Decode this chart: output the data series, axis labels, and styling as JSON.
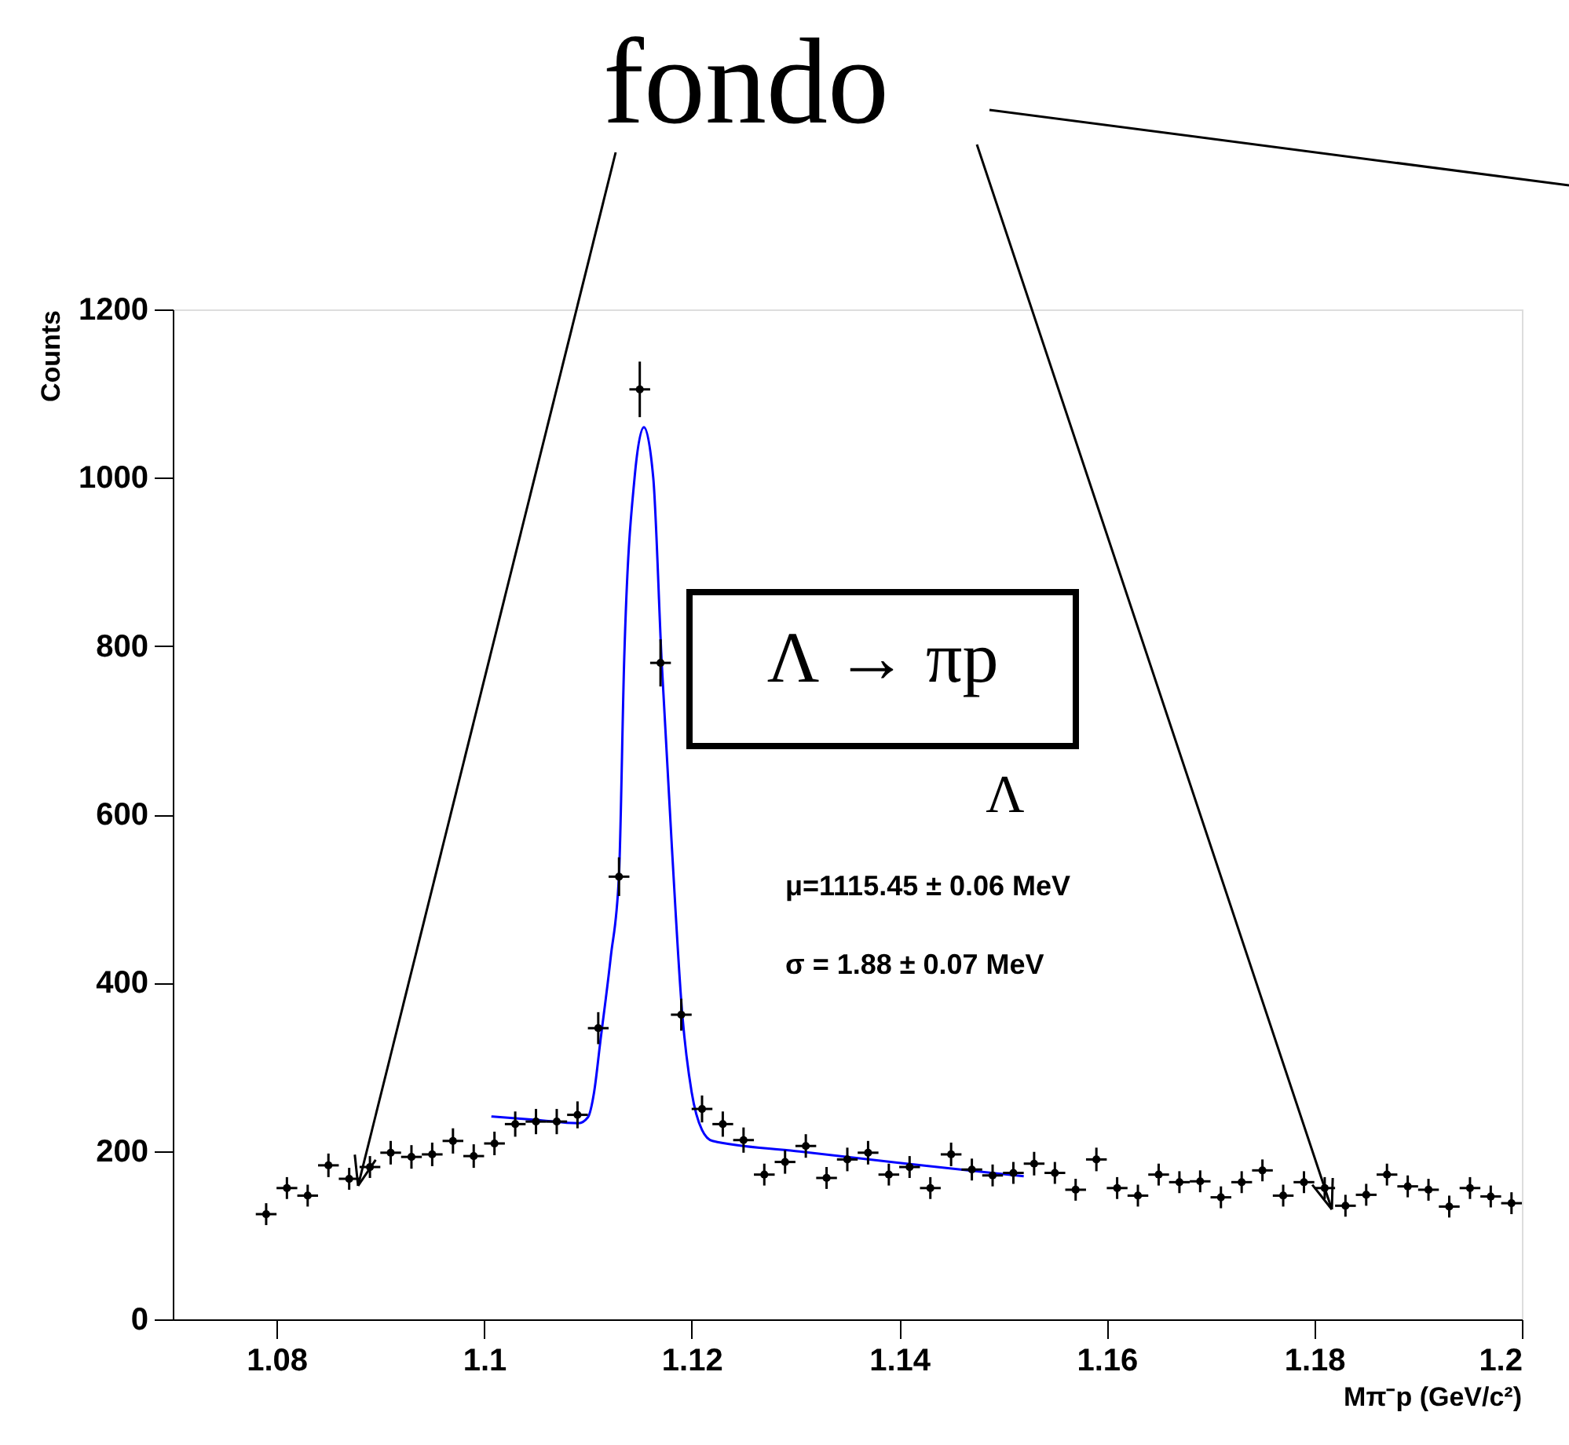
{
  "chart_data": {
    "type": "scatter",
    "xlabel": "Mπ⁻p (GeV/c²)",
    "ylabel": "Counts",
    "xlim": [
      1.07,
      1.2
    ],
    "xticks": [
      1.08,
      1.1,
      1.12,
      1.14,
      1.16,
      1.18,
      1.2
    ],
    "ylim": [
      0,
      1200
    ],
    "yticks": [
      0,
      200,
      400,
      600,
      800,
      1000,
      1200
    ],
    "grid": false,
    "annotations": [
      "fondo",
      "Λ → πp",
      "Λ",
      "μ=1115.45 ± 0.06 MeV",
      "σ = 1.88 ± 0.07 MeV"
    ],
    "series": [
      {
        "color": "#000000",
        "marker": "circle",
        "x": [
          1.079,
          1.081,
          1.083,
          1.085,
          1.087,
          1.089,
          1.091,
          1.093,
          1.095,
          1.097,
          1.099,
          1.101,
          1.103,
          1.105,
          1.107,
          1.109,
          1.111,
          1.113,
          1.115,
          1.117,
          1.119,
          1.121,
          1.123,
          1.125,
          1.127,
          1.129,
          1.131,
          1.133,
          1.135,
          1.137,
          1.139,
          1.141,
          1.143,
          1.145,
          1.147,
          1.149,
          1.151,
          1.153,
          1.155,
          1.157,
          1.159,
          1.161,
          1.163,
          1.165,
          1.167,
          1.169,
          1.171,
          1.173,
          1.175,
          1.177,
          1.179,
          1.181,
          1.183,
          1.185,
          1.187,
          1.189,
          1.191,
          1.193,
          1.195,
          1.197,
          1.199
        ],
        "values": [
          125,
          156,
          147,
          183,
          167,
          181,
          198,
          193,
          196,
          212,
          194,
          209,
          232,
          235,
          235,
          243,
          346,
          526,
          1105,
          780,
          362,
          250,
          232,
          213,
          172,
          187,
          206,
          168,
          190,
          198,
          172,
          181,
          156,
          196,
          178,
          171,
          174,
          185,
          174,
          154,
          190,
          156,
          147,
          172,
          163,
          164,
          145,
          163,
          177,
          147,
          163,
          156,
          135,
          148,
          172,
          158,
          154,
          134,
          156,
          146,
          138
        ],
        "errors": [
          13,
          13,
          13,
          14,
          13,
          13,
          14,
          14,
          14,
          15,
          14,
          14,
          15,
          15,
          15,
          16,
          19,
          23,
          33,
          28,
          19,
          16,
          15,
          15,
          13,
          14,
          14,
          13,
          14,
          14,
          13,
          13,
          13,
          14,
          13,
          13,
          13,
          14,
          13,
          13,
          14,
          13,
          13,
          13,
          13,
          13,
          13,
          13,
          13,
          13,
          13,
          13,
          13,
          13,
          13,
          13,
          13,
          13,
          13,
          13,
          13
        ],
        "xerrors": [
          0.001,
          0.001,
          0.001,
          0.001,
          0.001,
          0.001,
          0.001,
          0.001,
          0.001,
          0.001,
          0.001,
          0.001,
          0.001,
          0.001,
          0.001,
          0.001,
          0.001,
          0.001,
          0.001,
          0.001,
          0.001,
          0.001,
          0.001,
          0.001,
          0.001,
          0.001,
          0.001,
          0.001,
          0.001,
          0.001,
          0.001,
          0.001,
          0.001,
          0.001,
          0.001,
          0.001,
          0.001,
          0.001,
          0.001,
          0.001,
          0.001,
          0.001,
          0.001,
          0.001,
          0.001,
          0.001,
          0.001,
          0.001,
          0.001,
          0.001,
          0.001,
          0.001,
          0.001,
          0.001,
          0.001,
          0.001,
          0.001,
          0.001,
          0.001,
          0.001,
          0.001
        ]
      },
      {
        "type": "line",
        "color": "#0000ff",
        "marker": "none",
        "x": [
          1.1007,
          1.105,
          1.1091,
          1.11,
          1.1106,
          1.1112,
          1.1122,
          1.113,
          1.1135,
          1.1145,
          1.1154,
          1.1163,
          1.1171,
          1.1181,
          1.1191,
          1.12,
          1.121,
          1.122,
          1.13,
          1.14,
          1.152
        ],
        "values": [
          241,
          237,
          233,
          240,
          270,
          330,
          430,
          528,
          784,
          1000,
          1060,
          1000,
          784,
          560,
          362,
          270,
          225,
          212,
          200,
          186,
          170
        ]
      }
    ]
  }
}
